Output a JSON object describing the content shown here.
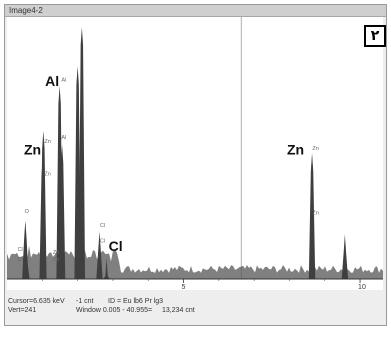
{
  "window": {
    "title": "Image4-2"
  },
  "badge": "۲",
  "chart_data": {
    "type": "spectrum",
    "xlabel": "",
    "ylabel": "",
    "xlim": [
      0,
      10.65
    ],
    "ylim": [
      0,
      9000
    ],
    "x_ticks": [
      5,
      10
    ],
    "x_tick_labels": [
      "5",
      "10"
    ],
    "peaks": [
      {
        "element": "Cl",
        "energy": 0.55,
        "counts": 1200
      },
      {
        "element": "O",
        "energy": 0.52,
        "counts": 2100
      },
      {
        "element": "Zn",
        "energy": 1.01,
        "counts": 4300
      },
      {
        "element": "Zn",
        "energy": 1.03,
        "counts": 5300
      },
      {
        "element": "Al",
        "energy": 1.49,
        "counts": 6900
      },
      {
        "element": "Al",
        "energy": 1.56,
        "counts": 4800
      },
      {
        "element": "",
        "energy": 2.0,
        "counts": 7600
      },
      {
        "element": "",
        "energy": 2.12,
        "counts": 9000
      },
      {
        "element": "Cl",
        "energy": 2.62,
        "counts": 1700
      },
      {
        "element": "Cl",
        "energy": 2.82,
        "counts": 750
      },
      {
        "element": "Zn",
        "energy": 8.64,
        "counts": 4500
      },
      {
        "element": "Zn",
        "energy": 9.57,
        "counts": 1600
      }
    ],
    "element_labels": [
      {
        "text": "Al",
        "energy": 1.25,
        "counts": 6900
      },
      {
        "text": "Zn",
        "energy": 0.65,
        "counts": 4450
      },
      {
        "text": "Zn",
        "energy": 8.1,
        "counts": 4450
      },
      {
        "text": "Cl",
        "energy": 3.05,
        "counts": 1000
      }
    ],
    "peak_marks": [
      {
        "text": "Zn",
        "energy": 1.06,
        "counts": 4850
      },
      {
        "text": "Zn",
        "energy": 1.06,
        "counts": 3700
      },
      {
        "text": "Al",
        "energy": 1.54,
        "counts": 7050
      },
      {
        "text": "Al",
        "energy": 1.54,
        "counts": 5000
      },
      {
        "text": "O",
        "energy": 0.5,
        "counts": 2350
      },
      {
        "text": "Cl",
        "energy": 0.3,
        "counts": 1000
      },
      {
        "text": "Cl",
        "energy": 0.3,
        "counts": 650
      },
      {
        "text": "Zn",
        "energy": 8.65,
        "counts": 4600
      },
      {
        "text": "Zn",
        "energy": 8.65,
        "counts": 2300
      },
      {
        "text": "Cl",
        "energy": 2.63,
        "counts": 1850
      },
      {
        "text": "Cl",
        "energy": 2.63,
        "counts": 1300
      },
      {
        "text": "Zn",
        "energy": 1.3,
        "counts": 900
      },
      {
        "text": "Zn",
        "energy": 1.3,
        "counts": 650
      }
    ],
    "cursor_energy": 6.635
  },
  "status": {
    "cursor": "Cursor=6.635 keV",
    "counts": "-1 cnt",
    "id": "ID = Eu lb6 Pr lg3",
    "vert": "Vert=241",
    "window": "Window 0.005 - 40.955=",
    "integral": "13,234 cnt"
  }
}
